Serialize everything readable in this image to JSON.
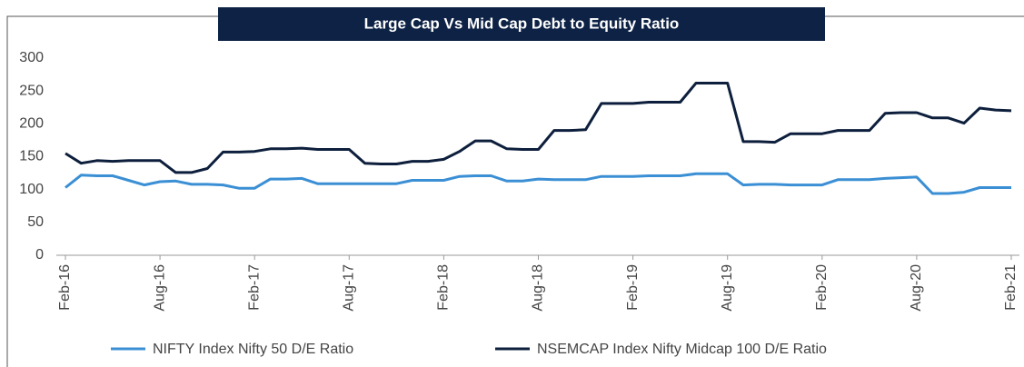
{
  "chart_data": {
    "type": "line",
    "title": "Large Cap Vs Mid Cap Debt to Equity Ratio",
    "categories": [
      "Feb-16",
      null,
      null,
      null,
      null,
      null,
      "Aug-16",
      null,
      null,
      null,
      null,
      null,
      "Feb-17",
      null,
      null,
      null,
      null,
      null,
      "Aug-17",
      null,
      null,
      null,
      null,
      null,
      "Feb-18",
      null,
      null,
      null,
      null,
      null,
      "Aug-18",
      null,
      null,
      null,
      null,
      null,
      "Feb-19",
      null,
      null,
      null,
      null,
      null,
      "Aug-19",
      null,
      null,
      null,
      null,
      null,
      "Feb-20",
      null,
      null,
      null,
      null,
      null,
      "Aug-20",
      null,
      null,
      null,
      null,
      null,
      "Feb-21"
    ],
    "series": [
      {
        "name": "NIFTY Index Nifty 50 D/E Ratio",
        "color": "#3b8fd4",
        "values": [
          103,
          122,
          121,
          121,
          114,
          107,
          112,
          113,
          108,
          108,
          107,
          102,
          102,
          116,
          116,
          117,
          109,
          109,
          109,
          109,
          109,
          109,
          114,
          114,
          114,
          120,
          121,
          121,
          113,
          113,
          116,
          115,
          115,
          115,
          120,
          120,
          120,
          121,
          121,
          121,
          124,
          124,
          124,
          107,
          108,
          108,
          107,
          107,
          107,
          115,
          115,
          115,
          117,
          118,
          119,
          94,
          94,
          96,
          103,
          103,
          103
        ]
      },
      {
        "name": "NSEMCAP Index Nifty Midcap 100 D/E Ratio",
        "color": "#0d1f3c",
        "values": [
          155,
          140,
          144,
          143,
          144,
          144,
          144,
          126,
          126,
          132,
          157,
          157,
          158,
          162,
          162,
          163,
          161,
          161,
          161,
          140,
          139,
          139,
          143,
          143,
          146,
          158,
          174,
          174,
          162,
          161,
          161,
          190,
          190,
          191,
          231,
          231,
          231,
          233,
          233,
          233,
          262,
          262,
          262,
          173,
          173,
          172,
          185,
          185,
          185,
          190,
          190,
          190,
          216,
          217,
          217,
          209,
          209,
          201,
          224,
          221,
          220
        ]
      }
    ],
    "ylim": [
      0,
      300
    ],
    "yticks": [
      0,
      50,
      100,
      150,
      200,
      250,
      300
    ]
  }
}
